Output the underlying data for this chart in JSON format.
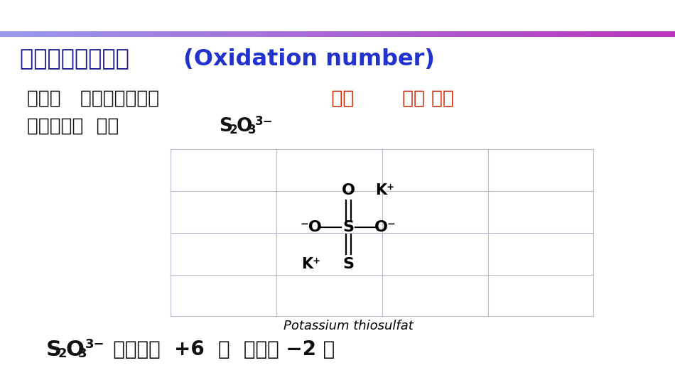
{
  "bg_color": "#ffffff",
  "bar_gradient_left": "#9999ee",
  "bar_gradient_right": "#bb33bb",
  "grid_color": "#bbbbcc",
  "red_color": "#cc2200",
  "dark_blue": "#1a1a8c",
  "bright_blue": "#2233cc",
  "black": "#111111",
  "title_zh": "一、元素的氧化数 ",
  "title_en": "(Oxidation number)",
  "line2_zh1": "化合价   得失电子的数目",
  "line2_red1": "    整数",
  "line2_red2": "  可正 可负",
  "line3_zh": "有些化合物  如： ",
  "caption": "Potassium thiosulfat",
  "bottom_zh": "  中居中的  +6  价  边上的 −2 价"
}
